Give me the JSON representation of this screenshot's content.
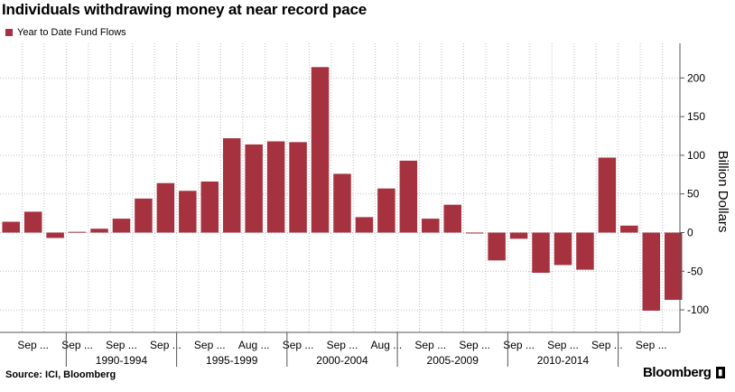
{
  "header": {
    "title": "Individuals withdrawing money at near record pace"
  },
  "footer": {
    "source": "Source: ICI, Bloomberg",
    "brand": "Bloomberg"
  },
  "colors": {
    "bar": "#a6323f",
    "grid": "#bdbdbd",
    "axis": "#555555"
  },
  "icons": {
    "brand": "bloomberg-terminal-icon"
  },
  "chart_data": {
    "type": "bar",
    "title": "Individuals withdrawing money at near record pace",
    "series": [
      {
        "name": "Year to Date Fund Flows",
        "values": [
          14,
          27,
          -7,
          1,
          5,
          18,
          44,
          64,
          54,
          66,
          122,
          114,
          118,
          117,
          214,
          76,
          20,
          57,
          93,
          18,
          36,
          -1,
          -36,
          -8,
          -52,
          -42,
          -48,
          97,
          9,
          -101,
          -87
        ]
      }
    ],
    "tick_labels": [
      "Sep ...",
      "Sep ...",
      "Sep ...",
      "Sep ...",
      "Sep ...",
      "Aug ...",
      "Sep ...",
      "Sep ...",
      "Aug ...",
      "Sep ...",
      "Sep ...",
      "Sep ...",
      "Sep ...",
      "Sep ...",
      "Sep ..."
    ],
    "groups": [
      "1990-1994",
      "1995-1999",
      "2000-2004",
      "2005-2009",
      "2010-2014"
    ],
    "ylabel": "Billion Dollars",
    "ylim": [
      -120,
      240
    ],
    "yticks": [
      -100,
      -50,
      0,
      50,
      100,
      150,
      200
    ],
    "grid": true,
    "legend_position": "top-left"
  }
}
